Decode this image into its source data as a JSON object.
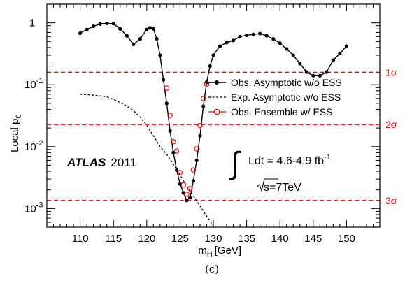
{
  "chart_data": {
    "type": "line",
    "xlabel": "m",
    "xlabel_sub": "H",
    "xlabel_unit": "[GeV]",
    "ylabel": "Local p",
    "ylabel_sub": "0",
    "xlim": [
      105,
      155
    ],
    "ylim": [
      0.0005,
      2
    ],
    "yscale": "log",
    "x_ticks": [
      110,
      115,
      120,
      125,
      130,
      135,
      140,
      145,
      150
    ],
    "x_tick_labels": [
      "110",
      "115",
      "120",
      "125",
      "130",
      "135",
      "140",
      "145",
      "150"
    ],
    "y_ticks": [
      1,
      0.1,
      0.01,
      0.001
    ],
    "y_tick_labels": [
      {
        "base": "1",
        "exp": ""
      },
      {
        "base": "10",
        "exp": "-1"
      },
      {
        "base": "10",
        "exp": "-2"
      },
      {
        "base": "10",
        "exp": "-3"
      }
    ],
    "sigma_lines": [
      {
        "label": "1σ",
        "p": 0.1587
      },
      {
        "label": "2σ",
        "p": 0.02275
      },
      {
        "label": "3σ",
        "p": 0.00135
      }
    ],
    "series": [
      {
        "name": "Obs. Asymptotic w/o ESS",
        "style": "solid-markers",
        "color": "#000000",
        "x": [
          110,
          111,
          112,
          113,
          114,
          115,
          116,
          117,
          118,
          119,
          120,
          120.5,
          121,
          121.5,
          122,
          122.5,
          123,
          123.5,
          124,
          124.5,
          125,
          125.5,
          126,
          126.5,
          127,
          127.5,
          128,
          128.5,
          129,
          129.5,
          130,
          131,
          132,
          133,
          134,
          135,
          136,
          137,
          138,
          139,
          140,
          141,
          142,
          143,
          144,
          145,
          146,
          147,
          148,
          149,
          150
        ],
        "y": [
          0.68,
          0.78,
          0.88,
          0.96,
          0.98,
          0.97,
          0.8,
          0.62,
          0.45,
          0.55,
          0.78,
          0.83,
          0.8,
          0.55,
          0.3,
          0.12,
          0.05,
          0.018,
          0.008,
          0.0042,
          0.0025,
          0.0018,
          0.00135,
          0.0015,
          0.0028,
          0.006,
          0.015,
          0.045,
          0.11,
          0.2,
          0.3,
          0.42,
          0.48,
          0.52,
          0.6,
          0.63,
          0.65,
          0.67,
          0.62,
          0.55,
          0.47,
          0.38,
          0.3,
          0.22,
          0.16,
          0.14,
          0.14,
          0.16,
          0.25,
          0.32,
          0.42
        ]
      },
      {
        "name": "Exp. Asymptotic w/o ESS",
        "style": "dashed",
        "color": "#000000",
        "x": [
          110,
          112,
          114,
          115,
          116,
          117,
          118,
          119,
          120,
          121,
          122,
          123,
          124,
          125,
          126,
          127,
          128,
          129,
          130,
          130.5
        ],
        "y": [
          0.07,
          0.068,
          0.064,
          0.058,
          0.052,
          0.045,
          0.038,
          0.03,
          0.022,
          0.015,
          0.01,
          0.0075,
          0.0052,
          0.0035,
          0.0023,
          0.0016,
          0.0011,
          0.00075,
          0.00052,
          0.00045
        ]
      },
      {
        "name": "Obs. Ensemble w/ ESS",
        "style": "open-circles",
        "color": "#ff0000",
        "x": [
          123,
          123.5,
          124,
          124.5,
          125,
          125.5,
          126,
          126.5,
          127,
          127.5,
          128,
          128.5,
          129
        ],
        "y": [
          0.088,
          0.032,
          0.012,
          0.0085,
          0.0038,
          0.0024,
          0.0017,
          0.0021,
          0.0042,
          0.0092,
          0.022,
          0.06,
          0.102
        ]
      }
    ],
    "annotations": {
      "experiment": "ATLAS",
      "year": "2011",
      "lumi_prefix": "Ldt = 4.6-4.9 fb",
      "lumi_exp": "-1",
      "energy": "s=7TeV",
      "caption": "(c)"
    },
    "legend_position": "right"
  }
}
